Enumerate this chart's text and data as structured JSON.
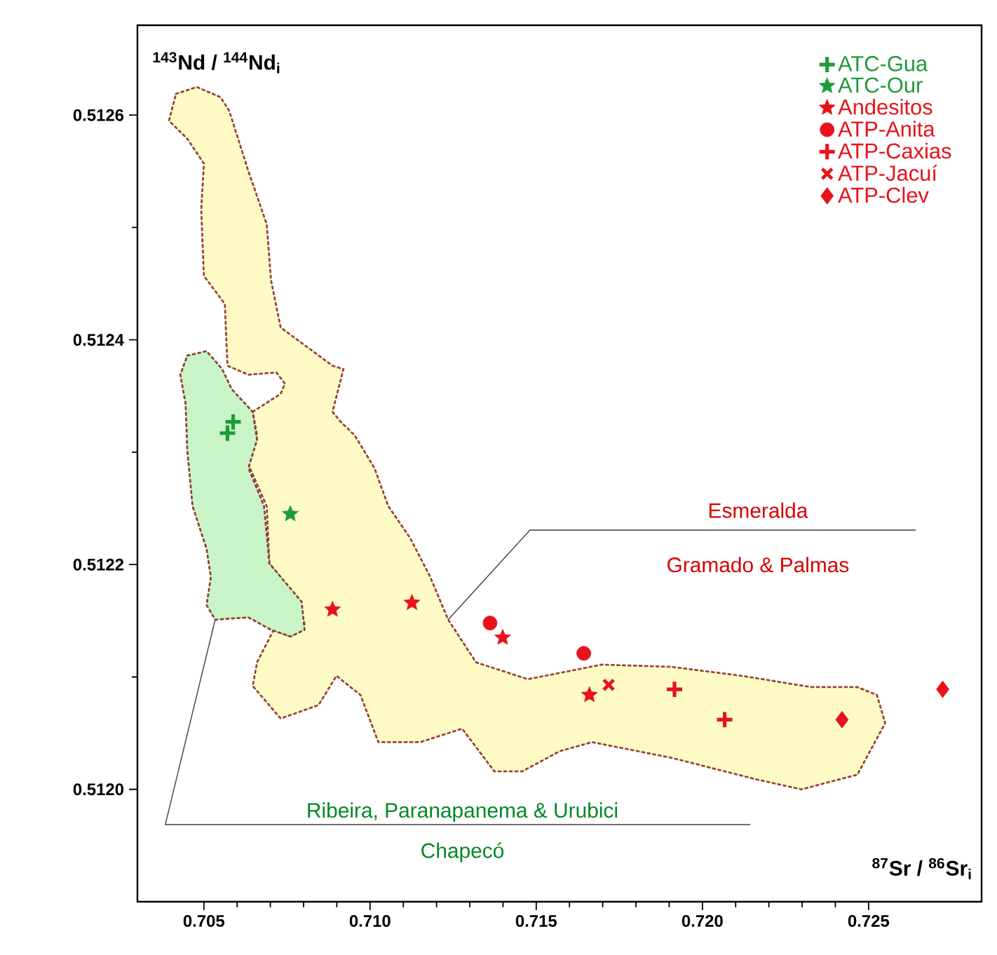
{
  "chart_data": {
    "type": "scatter",
    "xlabel": "$^{87}$Sr / $^{86}$Sr$_{i}$",
    "ylabel": "$^{143}$Nd / $^{144}$Nd$_{i}$",
    "xlim": [
      0.703,
      0.7284
    ],
    "ylim": [
      0.5119,
      0.51268
    ],
    "xticks": [
      0.705,
      {
        "value": 0.71,
        "label": "0.710"
      },
      0.715,
      {
        "value": 0.72,
        "label": "0.720"
      },
      0.725
    ],
    "yticks": [
      {
        "value": 0.512,
        "label": "0.5120"
      },
      0.5122,
      0.5124,
      0.5126
    ],
    "legend": "top right",
    "grid": false,
    "annotations": [
      {
        "text": "Esmeralda",
        "x": 0.71235,
        "y": 0.512151
      },
      "Gramado & Palmas",
      {
        "text": "Ribeira, Paranapanema & Urubici",
        "x": 0.70534,
        "y": 0.512151
      },
      "Chapecó"
    ],
    "series": [
      {
        "type": "area",
        "color": "#fdfac6",
        "line_style": "dotted",
        "x": [
          0.70416,
          0.70479,
          0.7055,
          0.70576,
          0.70634,
          0.70689,
          0.70702,
          0.70731,
          0.70887,
          0.7092,
          0.70887,
          0.70912,
          0.70954,
          0.71013,
          0.71055,
          0.71122,
          0.71181,
          0.71235,
          0.71319,
          0.71475,
          0.71697,
          0.71908,
          0.72118,
          0.72328,
          0.72466,
          0.72525,
          0.7255,
          0.72466,
          0.72298,
          0.7216,
          0.71908,
          0.71668,
          0.71571,
          0.71458,
          0.71374,
          0.71277,
          0.71151,
          0.71025,
          0.70971,
          0.70899,
          0.70845,
          0.70731,
          0.70647,
          0.7066,
          0.7071,
          0.70761,
          0.70803,
          0.70786,
          0.70697,
          0.70689,
          0.70634,
          0.7066,
          0.70647,
          0.70731,
          0.70744,
          0.70718,
          0.70634,
          0.70571,
          0.70563,
          0.705,
          0.70492,
          0.705,
          0.7045,
          0.70395
        ],
        "values": [
          0.512619,
          0.512625,
          0.512616,
          0.512604,
          0.51255,
          0.512503,
          0.512453,
          0.512411,
          0.512377,
          0.512374,
          0.512336,
          0.512327,
          0.512315,
          0.512286,
          0.512252,
          0.512223,
          0.512189,
          0.512151,
          0.512113,
          0.512098,
          0.512111,
          0.512109,
          0.512101,
          0.512091,
          0.512091,
          0.512084,
          0.512059,
          0.512013,
          0.512,
          0.512009,
          0.512028,
          0.512042,
          0.512034,
          0.512016,
          0.512016,
          0.512054,
          0.512042,
          0.512042,
          0.512084,
          0.512101,
          0.512075,
          0.512063,
          0.512092,
          0.512113,
          0.512142,
          0.512136,
          0.512147,
          0.512167,
          0.512201,
          0.512252,
          0.512289,
          0.512315,
          0.512336,
          0.512352,
          0.512361,
          0.512371,
          0.512369,
          0.512377,
          0.512432,
          0.512457,
          0.512516,
          0.512557,
          0.512579,
          0.512595
        ]
      },
      {
        "type": "area",
        "color": "#c8f4c8",
        "line_style": "dotted",
        "x": [
          0.7045,
          0.70508,
          0.70555,
          0.70584,
          0.70647,
          0.7066,
          0.70634,
          0.70681,
          0.70697,
          0.70794,
          0.70803,
          0.70761,
          0.70702,
          0.70634,
          0.70534,
          0.70508,
          0.70521,
          0.70508,
          0.70466,
          0.7045,
          0.70445,
          0.70429
        ],
        "values": [
          0.512386,
          0.51239,
          0.512374,
          0.512356,
          0.512336,
          0.512311,
          0.512286,
          0.512252,
          0.512201,
          0.512167,
          0.512142,
          0.512136,
          0.512142,
          0.512153,
          0.512151,
          0.512164,
          0.512189,
          0.512214,
          0.512252,
          0.512302,
          0.512343,
          0.512369
        ]
      },
      {
        "name": "ATC-Gua",
        "color": "#1f9a3a",
        "marker": "plus",
        "x": [
          0.70571,
          0.70588
        ],
        "values": [
          0.512317,
          0.512327
        ]
      },
      {
        "name": "ATC-Our",
        "color": "#1f9a3a",
        "marker": "star",
        "x": [
          0.7076
        ],
        "values": [
          0.512245
        ]
      },
      {
        "name": "Andesitos",
        "color": "#e8121b",
        "marker": "star",
        "x": [
          0.70887,
          0.71126,
          0.71399,
          0.7166
        ],
        "values": [
          0.51216,
          0.512166,
          0.512135,
          0.512084
        ]
      },
      {
        "name": "ATP-Anita",
        "color": "#e8121b",
        "marker": "circle",
        "x": [
          0.71361,
          0.71643
        ],
        "values": [
          0.512148,
          0.512121
        ]
      },
      {
        "name": "ATP-Caxias",
        "color": "#e8121b",
        "marker": "plus",
        "x": [
          0.71916,
          0.72067
        ],
        "values": [
          0.512089,
          0.512062
        ]
      },
      {
        "name": "ATP-Jacuí",
        "color": "#e8121b",
        "marker": "cross",
        "x": [
          0.71718
        ],
        "values": [
          0.512093
        ]
      },
      {
        "name": "ATP-Clev",
        "color": "#e8121b",
        "marker": "diamond",
        "x": [
          0.7242,
          0.72723
        ],
        "values": [
          0.512062,
          0.512089
        ]
      }
    ]
  }
}
